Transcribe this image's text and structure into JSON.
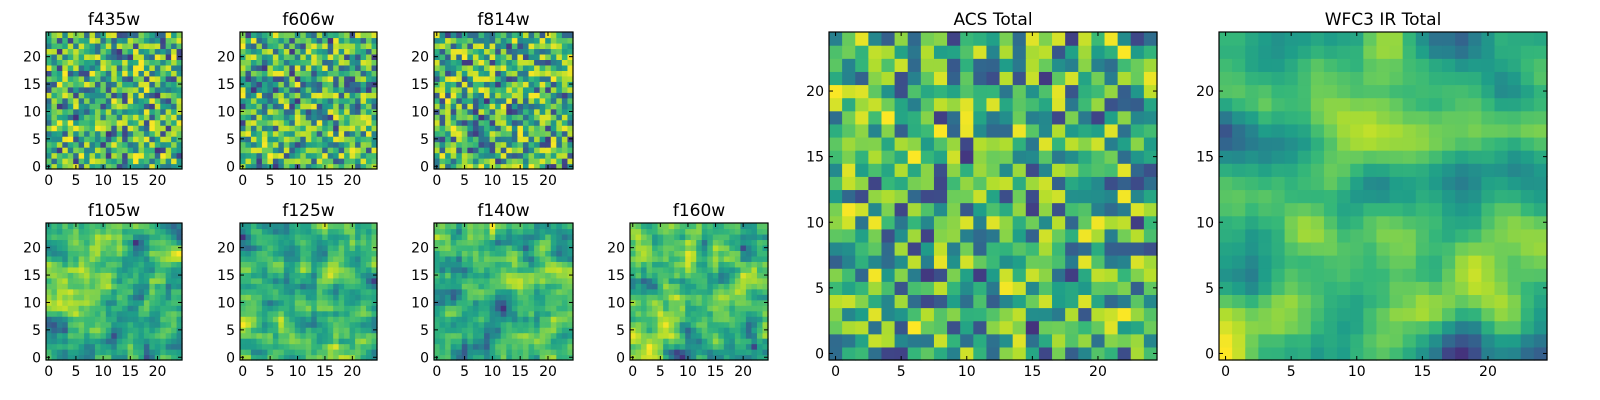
{
  "chart_data": [
    {
      "type": "heatmap",
      "title": "f435w",
      "xlim": [
        -0.5,
        24.5
      ],
      "ylim": [
        -0.5,
        24.5
      ],
      "xticks": [
        0,
        5,
        10,
        15,
        20
      ],
      "yticks": [
        0,
        5,
        10,
        15,
        20
      ],
      "colormap": "viridis",
      "grid": false,
      "pixels": 25
    },
    {
      "type": "heatmap",
      "title": "f606w",
      "xlim": [
        -0.5,
        24.5
      ],
      "ylim": [
        -0.5,
        24.5
      ],
      "xticks": [
        0,
        5,
        10,
        15,
        20
      ],
      "yticks": [
        0,
        5,
        10,
        15,
        20
      ],
      "colormap": "viridis",
      "grid": false,
      "pixels": 25
    },
    {
      "type": "heatmap",
      "title": "f814w",
      "xlim": [
        -0.5,
        24.5
      ],
      "ylim": [
        -0.5,
        24.5
      ],
      "xticks": [
        0,
        5,
        10,
        15,
        20
      ],
      "yticks": [
        0,
        5,
        10,
        15,
        20
      ],
      "colormap": "viridis",
      "grid": false,
      "pixels": 25
    },
    {
      "type": "heatmap",
      "title": "f105w",
      "xlim": [
        -0.5,
        24.5
      ],
      "ylim": [
        -0.5,
        24.5
      ],
      "xticks": [
        0,
        5,
        10,
        15,
        20
      ],
      "yticks": [
        0,
        5,
        10,
        15,
        20
      ],
      "colormap": "viridis",
      "grid": false,
      "pixels": 25
    },
    {
      "type": "heatmap",
      "title": "f125w",
      "xlim": [
        -0.5,
        24.5
      ],
      "ylim": [
        -0.5,
        24.5
      ],
      "xticks": [
        0,
        5,
        10,
        15,
        20
      ],
      "yticks": [
        0,
        5,
        10,
        15,
        20
      ],
      "colormap": "viridis",
      "grid": false,
      "pixels": 25
    },
    {
      "type": "heatmap",
      "title": "f140w",
      "xlim": [
        -0.5,
        24.5
      ],
      "ylim": [
        -0.5,
        24.5
      ],
      "xticks": [
        0,
        5,
        10,
        15,
        20
      ],
      "yticks": [
        0,
        5,
        10,
        15,
        20
      ],
      "colormap": "viridis",
      "grid": false,
      "pixels": 25
    },
    {
      "type": "heatmap",
      "title": "f160w",
      "xlim": [
        -0.5,
        24.5
      ],
      "ylim": [
        -0.5,
        24.5
      ],
      "xticks": [
        0,
        5,
        10,
        15,
        20
      ],
      "yticks": [
        0,
        5,
        10,
        15,
        20
      ],
      "colormap": "viridis",
      "grid": false,
      "pixels": 25
    },
    {
      "type": "heatmap",
      "title": "ACS Total",
      "xlim": [
        -0.5,
        24.5
      ],
      "ylim": [
        -0.5,
        24.5
      ],
      "xticks": [
        0,
        5,
        10,
        15,
        20
      ],
      "yticks": [
        0,
        5,
        10,
        15,
        20
      ],
      "colormap": "viridis",
      "grid": false,
      "pixels": 25
    },
    {
      "type": "heatmap",
      "title": "WFC3 IR Total",
      "xlim": [
        -0.5,
        24.5
      ],
      "ylim": [
        -0.5,
        24.5
      ],
      "xticks": [
        0,
        5,
        10,
        15,
        20
      ],
      "yticks": [
        0,
        5,
        10,
        15,
        20
      ],
      "colormap": "viridis",
      "grid": false,
      "pixels": 25
    }
  ]
}
